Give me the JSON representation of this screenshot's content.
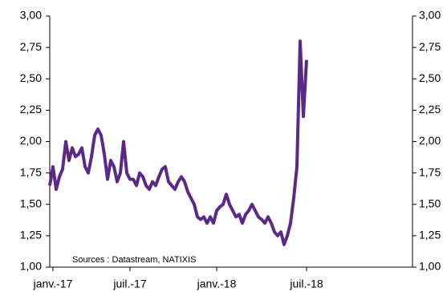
{
  "chart_data": {
    "type": "line",
    "annotation": "Sources : Datastream,  NATIXIS",
    "categories": [
      null,
      "janv.-17",
      null,
      null,
      null,
      null,
      null,
      null,
      null,
      null,
      null,
      null,
      null,
      null,
      null,
      null,
      null,
      null,
      null,
      null,
      null,
      null,
      null,
      null,
      null,
      "juil.-17",
      null,
      null,
      null,
      null,
      null,
      null,
      null,
      null,
      null,
      null,
      null,
      null,
      null,
      null,
      null,
      null,
      null,
      null,
      null,
      null,
      null,
      null,
      null,
      null,
      null,
      null,
      "janv.-18",
      null,
      null,
      null,
      null,
      null,
      null,
      null,
      null,
      null,
      null,
      null,
      null,
      null,
      null,
      null,
      null,
      null,
      null,
      null,
      null,
      null,
      null,
      null,
      null,
      null,
      null,
      null,
      "juil.-18"
    ],
    "series": [
      {
        "color": "#5b2a86",
        "values": [
          1.65,
          1.8,
          1.62,
          1.72,
          1.78,
          2.0,
          1.85,
          1.95,
          1.88,
          1.9,
          1.95,
          1.8,
          1.75,
          1.88,
          2.05,
          2.1,
          2.05,
          1.9,
          1.7,
          1.85,
          1.8,
          1.68,
          1.75,
          2.0,
          1.75,
          1.7,
          1.7,
          1.65,
          1.75,
          1.72,
          1.65,
          1.62,
          1.68,
          1.65,
          1.72,
          1.78,
          1.8,
          1.68,
          1.65,
          1.62,
          1.68,
          1.72,
          1.68,
          1.6,
          1.55,
          1.5,
          1.4,
          1.38,
          1.4,
          1.35,
          1.4,
          1.35,
          1.45,
          1.48,
          1.5,
          1.58,
          1.5,
          1.45,
          1.4,
          1.42,
          1.35,
          1.42,
          1.45,
          1.5,
          1.45,
          1.4,
          1.38,
          1.35,
          1.4,
          1.35,
          1.28,
          1.25,
          1.28,
          1.18,
          1.25,
          1.35,
          1.55,
          1.8,
          2.8,
          2.2,
          2.65
        ]
      }
    ],
    "ylim": [
      1,
      3
    ],
    "yticks": [
      {
        "value": 1,
        "label": "1,00"
      },
      {
        "value": 1.25,
        "label": "1,25"
      },
      {
        "value": 1.5,
        "label": "1,50"
      },
      {
        "value": 1.75,
        "label": "1,75"
      },
      {
        "value": 2,
        "label": "2,00"
      },
      {
        "value": 2.25,
        "label": "2,25"
      },
      {
        "value": 2.5,
        "label": "2,50"
      },
      {
        "value": 2.75,
        "label": "2,75"
      },
      {
        "value": 3,
        "label": "3,00"
      }
    ],
    "y2lim": [
      1,
      3
    ],
    "y2ticks": [
      {
        "value": 1,
        "label": "1,00"
      },
      {
        "value": 1.25,
        "label": "1,25"
      },
      {
        "value": 1.5,
        "label": "1,50"
      },
      {
        "value": 1.75,
        "label": "1,75"
      },
      {
        "value": 2,
        "label": "2,00"
      },
      {
        "value": 2.25,
        "label": "2,25"
      },
      {
        "value": 2.5,
        "label": "2,50"
      },
      {
        "value": 2.75,
        "label": "2,75"
      },
      {
        "value": 3,
        "label": "3,00"
      }
    ]
  }
}
